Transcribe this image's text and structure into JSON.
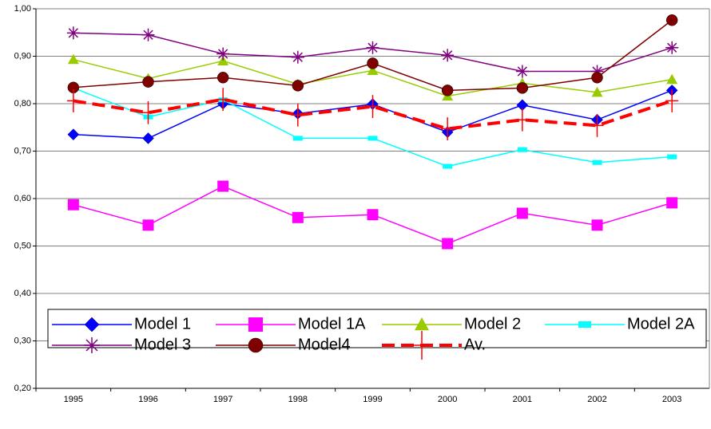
{
  "chart_data": {
    "type": "line",
    "categories": [
      "1995",
      "1996",
      "1997",
      "1998",
      "1999",
      "2000",
      "2001",
      "2002",
      "2003"
    ],
    "ylim": [
      0.2,
      1.0
    ],
    "yticks": [
      {
        "value": 0.2,
        "label": "0,20"
      },
      {
        "value": 0.3,
        "label": "0,30"
      },
      {
        "value": 0.4,
        "label": "0,40"
      },
      {
        "value": 0.5,
        "label": "0,50"
      },
      {
        "value": 0.6,
        "label": "0,60"
      },
      {
        "value": 0.7,
        "label": "0,70"
      },
      {
        "value": 0.8,
        "label": "0,80"
      },
      {
        "value": 0.9,
        "label": "0,90"
      },
      {
        "value": 1.0,
        "label": "1,00"
      }
    ],
    "grid": true,
    "legend": "bottom",
    "series": [
      {
        "name": "Model 1",
        "color": "#0000ff",
        "marker": "diamond",
        "values": [
          0.735,
          0.727,
          0.8,
          0.779,
          0.799,
          0.74,
          0.797,
          0.766,
          0.828
        ]
      },
      {
        "name": "Model 1A",
        "color": "#ff00ff",
        "marker": "square",
        "values": [
          0.587,
          0.544,
          0.626,
          0.56,
          0.566,
          0.505,
          0.569,
          0.544,
          0.591
        ]
      },
      {
        "name": "Model 2",
        "color": "#99cc00",
        "marker": "triangle",
        "values": [
          0.893,
          0.853,
          0.89,
          0.841,
          0.87,
          0.816,
          0.843,
          0.824,
          0.851
        ]
      },
      {
        "name": "Model 2A",
        "color": "#00ffff",
        "marker": "bar",
        "values": [
          0.833,
          0.772,
          0.808,
          0.727,
          0.727,
          0.668,
          0.703,
          0.676,
          0.688
        ]
      },
      {
        "name": "Model 3",
        "color": "#800080",
        "marker": "star",
        "values": [
          0.949,
          0.945,
          0.905,
          0.898,
          0.918,
          0.902,
          0.868,
          0.868,
          0.918
        ]
      },
      {
        "name": "Model4",
        "color": "#800000",
        "marker": "circle",
        "values": [
          0.834,
          0.846,
          0.855,
          0.838,
          0.885,
          0.828,
          0.833,
          0.855,
          0.976
        ]
      },
      {
        "name": "Av.",
        "color": "#ff0000",
        "marker": "plus",
        "dashed": true,
        "values": [
          0.806,
          0.781,
          0.809,
          0.776,
          0.794,
          0.747,
          0.766,
          0.754,
          0.806
        ]
      }
    ]
  }
}
